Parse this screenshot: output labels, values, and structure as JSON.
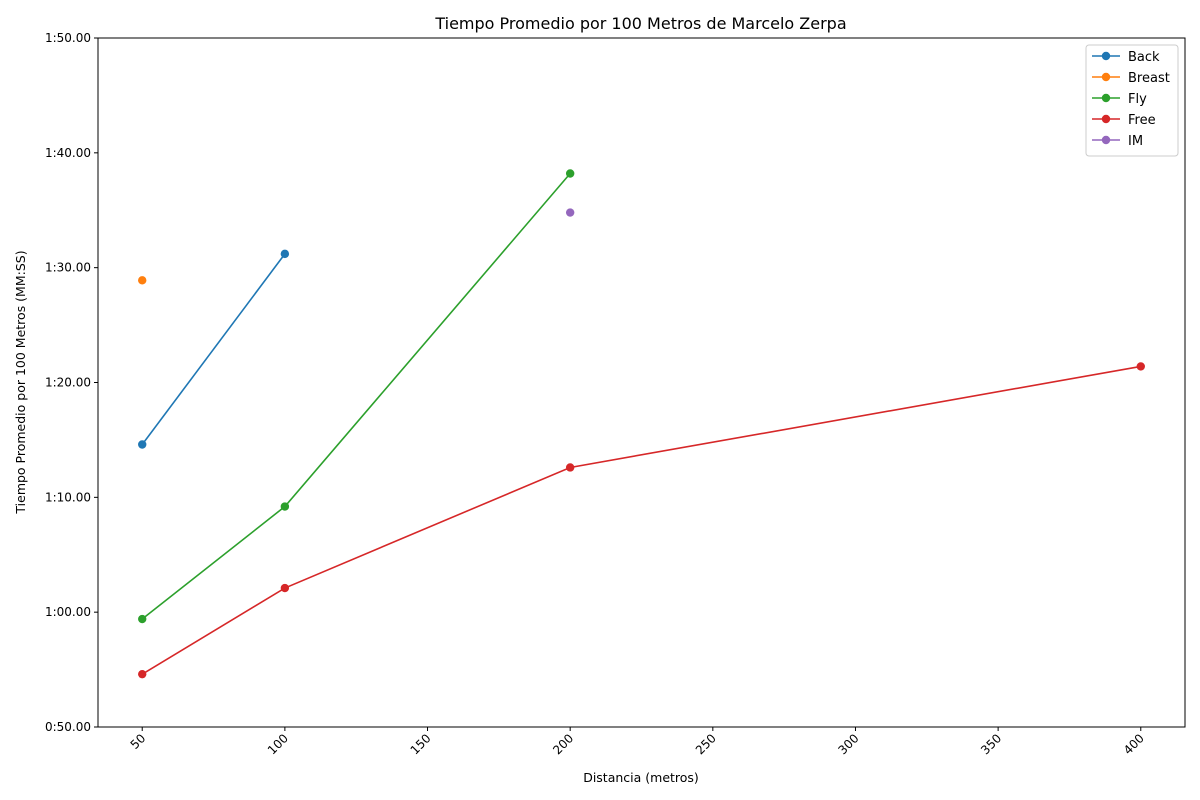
{
  "chart_data": {
    "type": "line",
    "title": "Tiempo Promedio por 100 Metros de Marcelo Zerpa",
    "xlabel": "Distancia (metros)",
    "ylabel": "Tiempo Promedio por 100 Metros (MM:SS)",
    "xlim": [
      34.5,
      415.5
    ],
    "ylim": [
      50,
      110
    ],
    "xticks": [
      50,
      100,
      150,
      200,
      250,
      300,
      350,
      400
    ],
    "xtick_labels": [
      "50",
      "100",
      "150",
      "200",
      "250",
      "300",
      "350",
      "400"
    ],
    "yticks": [
      50,
      60,
      70,
      80,
      90,
      100,
      110
    ],
    "ytick_labels": [
      "0:50.00",
      "1:00.00",
      "1:10.00",
      "1:20.00",
      "1:30.00",
      "1:40.00",
      "1:50.00"
    ],
    "grid": false,
    "legend": "top-right",
    "series": [
      {
        "name": "Back",
        "color": "#1f77b4",
        "x": [
          50,
          100
        ],
        "y": [
          74.6,
          91.2
        ]
      },
      {
        "name": "Breast",
        "color": "#ff7f0e",
        "x": [
          50
        ],
        "y": [
          88.9
        ]
      },
      {
        "name": "Fly",
        "color": "#2ca02c",
        "x": [
          50,
          100,
          200
        ],
        "y": [
          59.4,
          69.2,
          98.2
        ]
      },
      {
        "name": "Free",
        "color": "#d62728",
        "x": [
          50,
          100,
          200,
          400
        ],
        "y": [
          54.6,
          62.1,
          72.6,
          81.4
        ]
      },
      {
        "name": "IM",
        "color": "#9467bd",
        "x": [
          200
        ],
        "y": [
          94.8
        ]
      }
    ]
  }
}
